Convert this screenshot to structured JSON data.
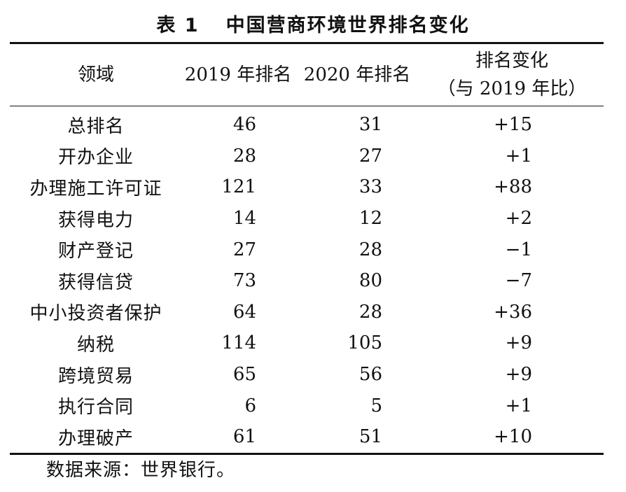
{
  "title": {
    "number": "表 1",
    "text": "中国营商环境世界排名变化"
  },
  "headers": {
    "field": "领域",
    "rank2019": "2019 年排名",
    "rank2020": "2020 年排名",
    "change_line1": "排名变化",
    "change_line2": "（与 2019 年比）"
  },
  "rows": [
    {
      "field": "总排名",
      "r2019": "46",
      "r2020": "31",
      "change": "+15"
    },
    {
      "field": "开办企业",
      "r2019": "28",
      "r2020": "27",
      "change": "+1"
    },
    {
      "field": "办理施工许可证",
      "r2019": "121",
      "r2020": "33",
      "change": "+88"
    },
    {
      "field": "获得电力",
      "r2019": "14",
      "r2020": "12",
      "change": "+2"
    },
    {
      "field": "财产登记",
      "r2019": "27",
      "r2020": "28",
      "change": "−1"
    },
    {
      "field": "获得信贷",
      "r2019": "73",
      "r2020": "80",
      "change": "−7"
    },
    {
      "field": "中小投资者保护",
      "r2019": "64",
      "r2020": "28",
      "change": "+36"
    },
    {
      "field": "纳税",
      "r2019": "114",
      "r2020": "105",
      "change": "+9"
    },
    {
      "field": "跨境贸易",
      "r2019": "65",
      "r2020": "56",
      "change": "+9"
    },
    {
      "field": "执行合同",
      "r2019": "6",
      "r2020": "5",
      "change": "+1"
    },
    {
      "field": "办理破产",
      "r2019": "61",
      "r2020": "51",
      "change": "+10"
    }
  ],
  "source_note": "数据来源：世界银行。"
}
